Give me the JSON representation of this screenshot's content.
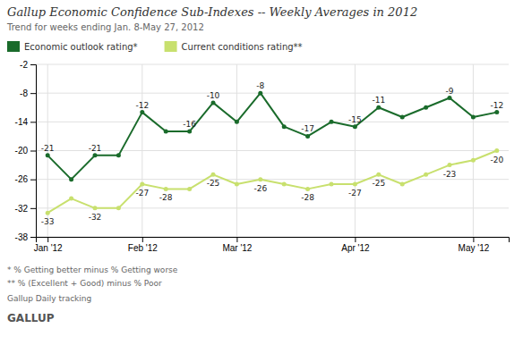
{
  "chart_data": {
    "type": "line",
    "title": "Gallup Economic Confidence Sub-Indexes -- Weekly Averages in 2012",
    "subtitle": "Trend for weeks ending Jan. 8-May 27, 2012",
    "footnotes": [
      "* % Getting better minus % Getting worse",
      "** % (Excellent + Good) minus % Poor",
      "Gallup Daily tracking",
      "GALLUP"
    ],
    "categories": [
      "Jan '12",
      null,
      null,
      null,
      "Feb '12",
      null,
      null,
      null,
      "Mar '12",
      null,
      null,
      null,
      null,
      "Apr '12",
      null,
      null,
      null,
      null,
      "May '12",
      null
    ],
    "series": [
      {
        "name": "Economic outlook rating*",
        "color": "#1a6b2b",
        "marker": "circle",
        "values": [
          -21,
          -26,
          -21,
          -21,
          -12,
          -16,
          -16,
          -10,
          -14,
          -8,
          -15,
          -17,
          -14,
          -15,
          -11,
          -13,
          -11,
          -9,
          -13,
          -12
        ],
        "value_labels": [
          "-21",
          null,
          "-21",
          null,
          "-12",
          null,
          "-16",
          "-10",
          null,
          "-8",
          null,
          "-17",
          null,
          "-15",
          "-11",
          null,
          null,
          "-9",
          null,
          "-12"
        ]
      },
      {
        "name": "Current conditions rating**",
        "color": "#c8e06e",
        "marker": "circle",
        "values": [
          -33,
          -30,
          -32,
          -32,
          -27,
          -28,
          -28,
          -25,
          -27,
          -26,
          -27,
          -28,
          -27,
          -27,
          -25,
          -27,
          -25,
          -23,
          -22,
          -20
        ],
        "value_labels": [
          "-33",
          null,
          "-32",
          null,
          "-27",
          "-28",
          null,
          "-25",
          null,
          "-26",
          null,
          "-28",
          null,
          "-27",
          "-25",
          null,
          null,
          "-23",
          null,
          "-20"
        ]
      }
    ],
    "ylim": [
      -38,
      -2
    ],
    "yticks": [
      -38,
      -32,
      -26,
      -20,
      -14,
      -8,
      -2
    ],
    "grid": true,
    "legend": "top",
    "data_labels": true
  }
}
